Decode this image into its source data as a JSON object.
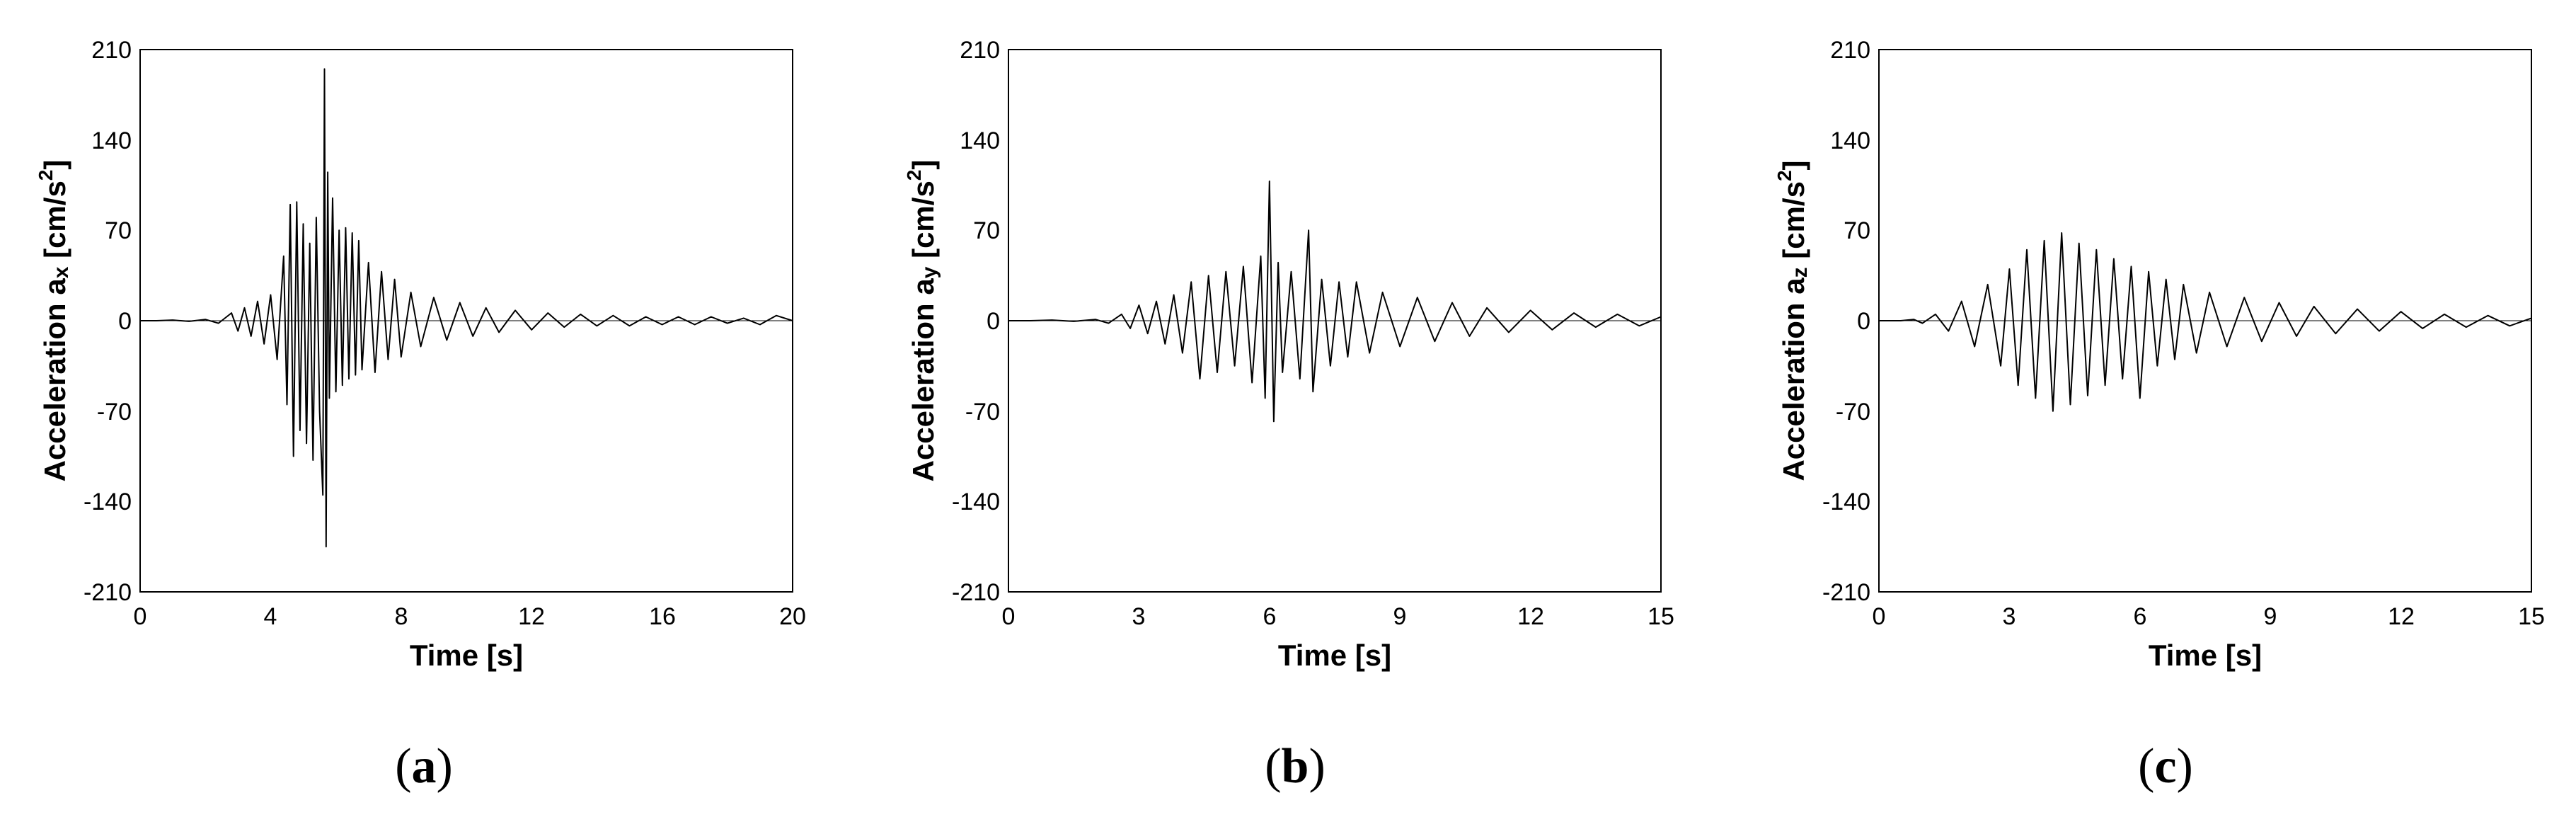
{
  "chart_data": [
    {
      "type": "line",
      "panel_label": "a",
      "xlabel": "Time [s]",
      "ylabel_prefix": "Acceleration a",
      "ylabel_sub": "x",
      "ylabel_suffix": " [cm/s",
      "ylabel_sup": "2",
      "ylabel_close": "]",
      "xlim": [
        0,
        20
      ],
      "ylim": [
        -210,
        210
      ],
      "xticks": [
        "0",
        "4",
        "8",
        "12",
        "16",
        "20"
      ],
      "xtick_values": [
        0,
        4,
        8,
        12,
        16,
        20
      ],
      "yticks": [
        "-210",
        "-140",
        "-70",
        "0",
        "70",
        "140",
        "210"
      ],
      "ytick_values": [
        -210,
        -140,
        -70,
        0,
        70,
        140,
        210
      ],
      "grid": false,
      "series": [
        {
          "points": [
            [
              0.5,
              0
            ],
            [
              1.0,
              0.5
            ],
            [
              1.5,
              -0.5
            ],
            [
              2.0,
              1
            ],
            [
              2.4,
              -2
            ],
            [
              2.8,
              6
            ],
            [
              3.0,
              -8
            ],
            [
              3.2,
              10
            ],
            [
              3.4,
              -12
            ],
            [
              3.6,
              15
            ],
            [
              3.8,
              -18
            ],
            [
              4.0,
              20
            ],
            [
              4.2,
              -30
            ],
            [
              4.4,
              50
            ],
            [
              4.5,
              -65
            ],
            [
              4.6,
              90
            ],
            [
              4.7,
              -105
            ],
            [
              4.8,
              92
            ],
            [
              4.9,
              -85
            ],
            [
              5.0,
              75
            ],
            [
              5.1,
              -95
            ],
            [
              5.2,
              60
            ],
            [
              5.3,
              -108
            ],
            [
              5.4,
              80
            ],
            [
              5.5,
              -70
            ],
            [
              5.6,
              -135
            ],
            [
              5.65,
              195
            ],
            [
              5.7,
              -175
            ],
            [
              5.75,
              115
            ],
            [
              5.8,
              -60
            ],
            [
              5.9,
              95
            ],
            [
              6.0,
              -55
            ],
            [
              6.1,
              70
            ],
            [
              6.2,
              -50
            ],
            [
              6.3,
              72
            ],
            [
              6.4,
              -45
            ],
            [
              6.5,
              68
            ],
            [
              6.6,
              -42
            ],
            [
              6.7,
              62
            ],
            [
              6.8,
              -38
            ],
            [
              7.0,
              45
            ],
            [
              7.2,
              -40
            ],
            [
              7.4,
              38
            ],
            [
              7.6,
              -30
            ],
            [
              7.8,
              32
            ],
            [
              8.0,
              -28
            ],
            [
              8.3,
              22
            ],
            [
              8.6,
              -20
            ],
            [
              9.0,
              18
            ],
            [
              9.4,
              -15
            ],
            [
              9.8,
              14
            ],
            [
              10.2,
              -12
            ],
            [
              10.6,
              10
            ],
            [
              11.0,
              -9
            ],
            [
              11.5,
              8
            ],
            [
              12.0,
              -7
            ],
            [
              12.5,
              6
            ],
            [
              13.0,
              -5
            ],
            [
              13.5,
              5
            ],
            [
              14.0,
              -4
            ],
            [
              14.5,
              4
            ],
            [
              15.0,
              -4
            ],
            [
              15.5,
              3
            ],
            [
              16.0,
              -3
            ],
            [
              16.5,
              3
            ],
            [
              17.0,
              -3
            ],
            [
              17.5,
              3
            ],
            [
              18.0,
              -2
            ],
            [
              18.5,
              2
            ],
            [
              19.0,
              -3
            ],
            [
              19.5,
              4
            ],
            [
              20.0,
              0
            ]
          ]
        }
      ]
    },
    {
      "type": "line",
      "panel_label": "b",
      "xlabel": "Time [s]",
      "ylabel_prefix": "Acceleration a",
      "ylabel_sub": "y",
      "ylabel_suffix": " [cm/s",
      "ylabel_sup": "2",
      "ylabel_close": "]",
      "xlim": [
        0,
        15
      ],
      "ylim": [
        -210,
        210
      ],
      "xticks": [
        "0",
        "3",
        "6",
        "9",
        "12",
        "15"
      ],
      "xtick_values": [
        0,
        3,
        6,
        9,
        12,
        15
      ],
      "yticks": [
        "-210",
        "-140",
        "-70",
        "0",
        "70",
        "140",
        "210"
      ],
      "ytick_values": [
        -210,
        -140,
        -70,
        0,
        70,
        140,
        210
      ],
      "grid": false,
      "series": [
        {
          "points": [
            [
              0.5,
              0
            ],
            [
              1.0,
              0.5
            ],
            [
              1.5,
              -0.5
            ],
            [
              2.0,
              1
            ],
            [
              2.3,
              -2
            ],
            [
              2.6,
              5
            ],
            [
              2.8,
              -6
            ],
            [
              3.0,
              12
            ],
            [
              3.2,
              -10
            ],
            [
              3.4,
              15
            ],
            [
              3.6,
              -18
            ],
            [
              3.8,
              20
            ],
            [
              4.0,
              -25
            ],
            [
              4.2,
              30
            ],
            [
              4.4,
              -45
            ],
            [
              4.6,
              35
            ],
            [
              4.8,
              -40
            ],
            [
              5.0,
              38
            ],
            [
              5.2,
              -35
            ],
            [
              5.4,
              42
            ],
            [
              5.6,
              -48
            ],
            [
              5.8,
              50
            ],
            [
              5.9,
              -60
            ],
            [
              6.0,
              108
            ],
            [
              6.1,
              -78
            ],
            [
              6.2,
              45
            ],
            [
              6.3,
              -40
            ],
            [
              6.5,
              38
            ],
            [
              6.7,
              -45
            ],
            [
              6.9,
              70
            ],
            [
              7.0,
              -55
            ],
            [
              7.2,
              32
            ],
            [
              7.4,
              -35
            ],
            [
              7.6,
              30
            ],
            [
              7.8,
              -28
            ],
            [
              8.0,
              30
            ],
            [
              8.3,
              -25
            ],
            [
              8.6,
              22
            ],
            [
              9.0,
              -20
            ],
            [
              9.4,
              18
            ],
            [
              9.8,
              -16
            ],
            [
              10.2,
              14
            ],
            [
              10.6,
              -12
            ],
            [
              11.0,
              10
            ],
            [
              11.5,
              -9
            ],
            [
              12.0,
              8
            ],
            [
              12.5,
              -7
            ],
            [
              13.0,
              6
            ],
            [
              13.5,
              -5
            ],
            [
              14.0,
              5
            ],
            [
              14.5,
              -4
            ],
            [
              15.0,
              3
            ]
          ]
        }
      ]
    },
    {
      "type": "line",
      "panel_label": "c",
      "xlabel": "Time [s]",
      "ylabel_prefix": "Acceleration a",
      "ylabel_sub": "z",
      "ylabel_suffix": " [cm/s",
      "ylabel_sup": "2",
      "ylabel_close": "]",
      "xlim": [
        0,
        15
      ],
      "ylim": [
        -210,
        210
      ],
      "xticks": [
        "0",
        "3",
        "6",
        "9",
        "12",
        "15"
      ],
      "xtick_values": [
        0,
        3,
        6,
        9,
        12,
        15
      ],
      "yticks": [
        "-210",
        "-140",
        "-70",
        "0",
        "70",
        "140",
        "210"
      ],
      "ytick_values": [
        -210,
        -140,
        -70,
        0,
        70,
        140,
        210
      ],
      "grid": false,
      "series": [
        {
          "points": [
            [
              0.5,
              0
            ],
            [
              0.8,
              1
            ],
            [
              1.0,
              -2
            ],
            [
              1.3,
              5
            ],
            [
              1.6,
              -8
            ],
            [
              1.9,
              15
            ],
            [
              2.2,
              -20
            ],
            [
              2.5,
              28
            ],
            [
              2.8,
              -35
            ],
            [
              3.0,
              40
            ],
            [
              3.2,
              -50
            ],
            [
              3.4,
              55
            ],
            [
              3.6,
              -60
            ],
            [
              3.8,
              62
            ],
            [
              4.0,
              -70
            ],
            [
              4.2,
              68
            ],
            [
              4.4,
              -65
            ],
            [
              4.6,
              60
            ],
            [
              4.8,
              -58
            ],
            [
              5.0,
              55
            ],
            [
              5.2,
              -50
            ],
            [
              5.4,
              48
            ],
            [
              5.6,
              -45
            ],
            [
              5.8,
              42
            ],
            [
              6.0,
              -60
            ],
            [
              6.2,
              38
            ],
            [
              6.4,
              -35
            ],
            [
              6.6,
              32
            ],
            [
              6.8,
              -30
            ],
            [
              7.0,
              28
            ],
            [
              7.3,
              -25
            ],
            [
              7.6,
              22
            ],
            [
              8.0,
              -20
            ],
            [
              8.4,
              18
            ],
            [
              8.8,
              -16
            ],
            [
              9.2,
              14
            ],
            [
              9.6,
              -12
            ],
            [
              10.0,
              11
            ],
            [
              10.5,
              -10
            ],
            [
              11.0,
              9
            ],
            [
              11.5,
              -8
            ],
            [
              12.0,
              7
            ],
            [
              12.5,
              -6
            ],
            [
              13.0,
              5
            ],
            [
              13.5,
              -5
            ],
            [
              14.0,
              4
            ],
            [
              14.5,
              -4
            ],
            [
              15.0,
              2
            ]
          ]
        }
      ]
    }
  ]
}
